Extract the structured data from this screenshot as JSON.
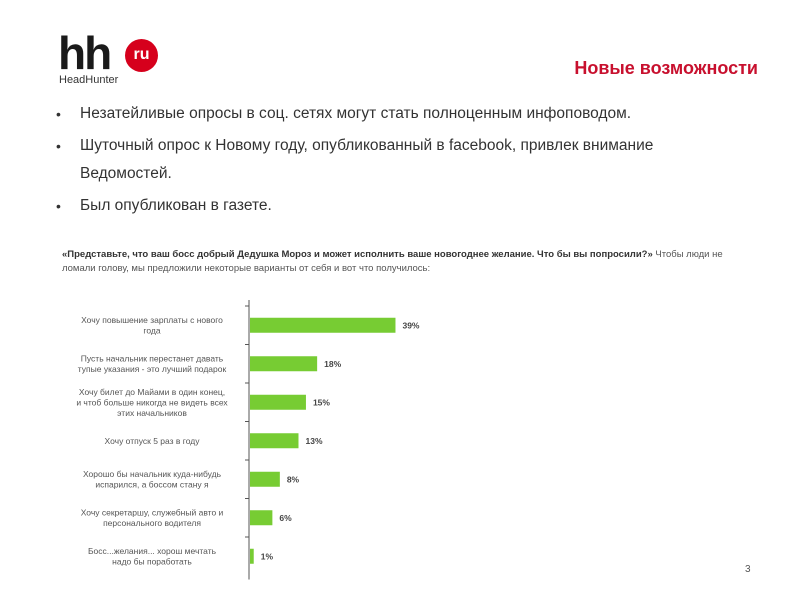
{
  "logo": {
    "mark": "hh",
    "badge": "ru",
    "subtitle": "HeadHunter"
  },
  "title": "Новые возможности",
  "bullets": [
    "Незатейливые опросы в соц. сетях могут стать полноценным инфоповодом.",
    "Шуточный опрос к Новому году, опубликованный в facebook, привлек внимание Ведомостей.",
    "Был опубликован в газете."
  ],
  "question": {
    "quote": "«Представьте, что ваш босс добрый Дедушка Мороз и может исполнить ваше новогоднее желание. Что бы вы попросили?»",
    "rest": " Чтобы люди не ломали голову, мы предложили некоторые варианты от себя и вот что получилось:"
  },
  "page_number": "3",
  "colors": {
    "bar": "#77cc33",
    "accent": "#c8102e",
    "brand_red": "#d6001c"
  },
  "chart_data": {
    "type": "bar",
    "orientation": "horizontal",
    "categories": [
      [
        "Хочу повышение зарплаты с нового",
        "года"
      ],
      [
        "Пусть начальник перестанет давать",
        "тупые указания - это лучший подарок"
      ],
      [
        "Хочу билет до Майами в один конец,",
        "и чтоб больше никогда не видеть всех",
        "этих начальников"
      ],
      [
        "Хочу отпуск 5 раз в году"
      ],
      [
        "Хорошо бы начальник куда-нибудь",
        "испарился, а боссом стану я"
      ],
      [
        "Хочу секретаршу, служебный авто и",
        "персонального водителя"
      ],
      [
        "Босс...желания... хорош мечтать",
        "надо бы поработать"
      ]
    ],
    "values": [
      39,
      18,
      15,
      13,
      8,
      6,
      1
    ],
    "value_labels": [
      "39%",
      "18%",
      "15%",
      "13%",
      "8%",
      "6%",
      "1%"
    ],
    "xlim": [
      0,
      100
    ],
    "grid": false,
    "legend": "none"
  }
}
